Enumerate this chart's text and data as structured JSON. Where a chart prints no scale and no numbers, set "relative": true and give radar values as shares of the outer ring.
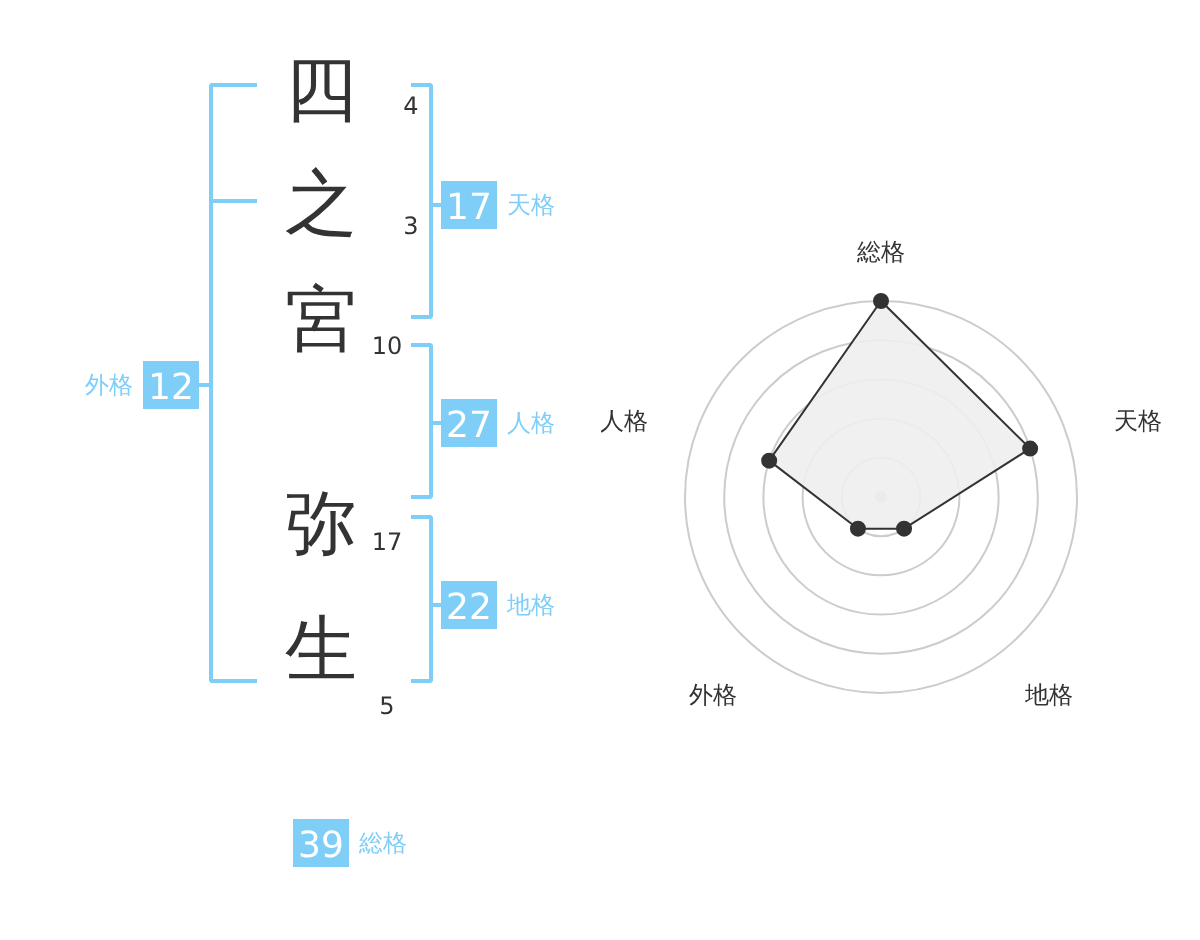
{
  "chart_data": [
    {
      "type": "other",
      "annotations": [
        "四",
        "4",
        "之",
        "3",
        "宮",
        "10",
        "弥",
        "17",
        "生",
        "5",
        "17",
        "天格",
        "27",
        "人格",
        "22",
        "地格",
        "外格",
        "12",
        "39",
        "総格"
      ]
    },
    {
      "type": "radar",
      "relative": true,
      "categories": [
        "総格",
        "天格",
        "地格",
        "外格",
        "人格"
      ],
      "series": [
        {
          "color": "#333333",
          "values": [
            1.0,
            0.8,
            0.2,
            0.2,
            0.6
          ]
        }
      ]
    }
  ]
}
